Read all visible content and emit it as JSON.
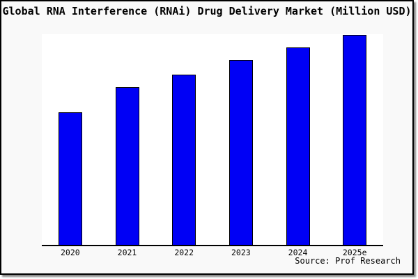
{
  "title": "Global RNA Interference (RNAi) Drug Delivery Market (Million USD)",
  "source_note": "Source: Prof Research",
  "colors": {
    "bar_fill": "#0000f5",
    "bar_border": "#000000",
    "figure_background": "#f9f9f9",
    "plot_background": "#ffffff",
    "frame_border": "#000000",
    "axis_line": "#000000"
  },
  "chart_data": {
    "type": "bar",
    "title": "Global RNA Interference (RNAi) Drug Delivery Market (Million USD)",
    "categories": [
      "2020",
      "2021",
      "2022",
      "2023",
      "2024",
      "2025e"
    ],
    "values": [
      63,
      75,
      81,
      88,
      94,
      100
    ],
    "values_note": "relative estimates from bar heights; chart shows no y-axis scale",
    "xlabel": "",
    "ylabel": "",
    "ylim": [
      0,
      100
    ],
    "grid": false,
    "legend": false,
    "annotations": [
      "Source: Prof Research"
    ]
  }
}
